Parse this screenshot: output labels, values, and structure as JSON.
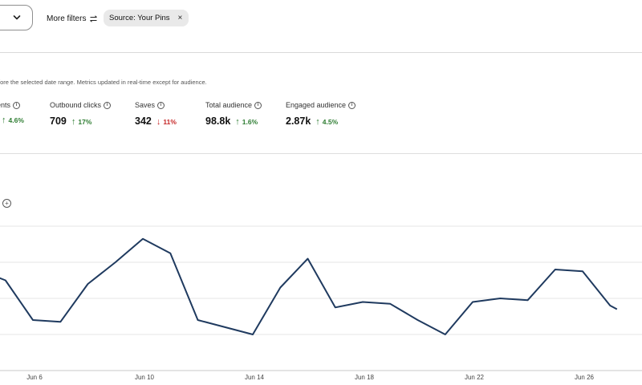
{
  "filters": {
    "more_filters_label": "More filters",
    "chip_label": "Source: Your Pins",
    "chip_close": "×",
    "icons": [
      "chevron-down-icon",
      "sliders-icon",
      "close-icon"
    ]
  },
  "note": "fore the selected date range. Metrics updated in real-time except for audience.",
  "metrics": [
    {
      "label": "ents",
      "value": "",
      "change": "4.6%",
      "direction": "up"
    },
    {
      "label": "Outbound clicks",
      "value": "709",
      "change": "17%",
      "direction": "up"
    },
    {
      "label": "Saves",
      "value": "342",
      "change": "11%",
      "direction": "down"
    },
    {
      "label": "Total audience",
      "value": "98.8k",
      "change": "1.6%",
      "direction": "up"
    },
    {
      "label": "Engaged audience",
      "value": "2.87k",
      "change": "4.5%",
      "direction": "up"
    }
  ],
  "colors": {
    "line": "#1f3a5f",
    "up": "#2e7d32",
    "down": "#c62828",
    "grid": "#e6e6e6"
  },
  "chart_data": {
    "type": "line",
    "x_tick_labels": [
      "Jun 6",
      "Jun 10",
      "Jun 14",
      "Jun 18",
      "Jun 22",
      "Jun 26"
    ],
    "x_start_day": 3,
    "x_end_day": 29,
    "grid": true,
    "series": [
      {
        "points": [
          {
            "day": 2.75,
            "y": 62
          },
          {
            "day": 4,
            "y": 56
          },
          {
            "day": 5,
            "y": 50
          },
          {
            "day": 6,
            "y": 28
          },
          {
            "day": 7,
            "y": 27
          },
          {
            "day": 8,
            "y": 48
          },
          {
            "day": 9,
            "y": 60
          },
          {
            "day": 10,
            "y": 73
          },
          {
            "day": 11,
            "y": 65
          },
          {
            "day": 12,
            "y": 28
          },
          {
            "day": 13,
            "y": 24
          },
          {
            "day": 14,
            "y": 20
          },
          {
            "day": 15,
            "y": 46
          },
          {
            "day": 16,
            "y": 62
          },
          {
            "day": 17,
            "y": 35
          },
          {
            "day": 18,
            "y": 38
          },
          {
            "day": 19,
            "y": 37
          },
          {
            "day": 20,
            "y": 28
          },
          {
            "day": 21,
            "y": 20
          },
          {
            "day": 22,
            "y": 38
          },
          {
            "day": 23,
            "y": 40
          },
          {
            "day": 24,
            "y": 39
          },
          {
            "day": 25,
            "y": 56
          },
          {
            "day": 26,
            "y": 55
          },
          {
            "day": 27,
            "y": 36
          },
          {
            "day": 27.25,
            "y": 34
          }
        ]
      }
    ]
  }
}
